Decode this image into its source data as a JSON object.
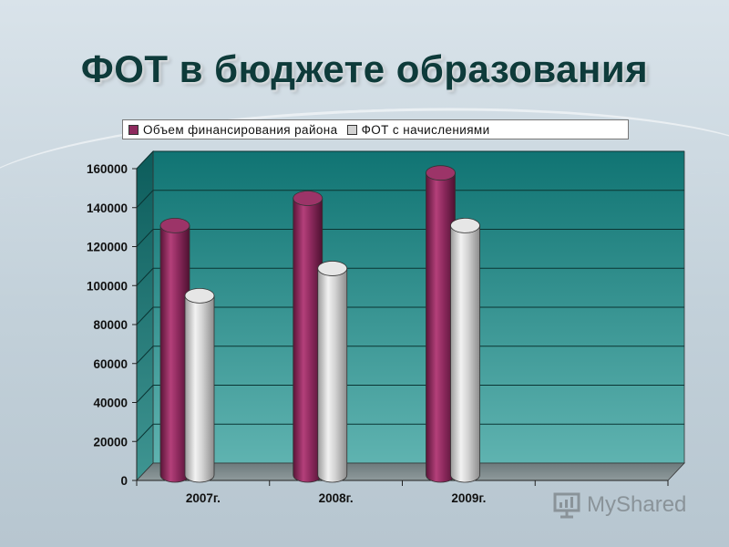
{
  "title": "ФОТ в бюджете образования",
  "legend": {
    "items": [
      {
        "label": "Объем финансирования района",
        "color": "#8e2a5e"
      },
      {
        "label": "ФОТ с начислениями",
        "color": "#d2d2d2"
      }
    ]
  },
  "watermark": {
    "text": "MyShared"
  },
  "colors": {
    "wall": "#1f8f8c",
    "floor": "#7e8a8c",
    "background": "#c7d4dc"
  },
  "chart_data": {
    "type": "bar",
    "shape": "cylinder-3d",
    "categories": [
      "2007г.",
      "2008г.",
      "2009г.",
      ""
    ],
    "series": [
      {
        "name": "Объем финансирования района",
        "values": [
          128000,
          142000,
          155000,
          null
        ],
        "color": "#8e2a5e"
      },
      {
        "name": "ФОТ с начислениями",
        "values": [
          92000,
          106000,
          128000,
          null
        ],
        "color": "#d2d2d2"
      }
    ],
    "ylim": [
      0,
      160000
    ],
    "yticks": [
      "0",
      "20000",
      "40000",
      "60000",
      "80000",
      "100000",
      "120000",
      "140000",
      "160000"
    ],
    "grid": true,
    "legend_position": "top"
  }
}
